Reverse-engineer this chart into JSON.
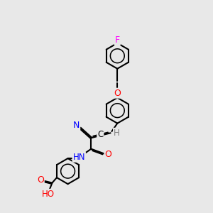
{
  "background_color": "#e8e8e8",
  "atom_colors": {
    "C": "#000000",
    "N": "#0000ff",
    "O": "#ff0000",
    "F": "#ff00ff",
    "H": "#808080"
  },
  "bond_color": "#000000",
  "bond_width": 1.5,
  "figsize": [
    3.0,
    3.0
  ],
  "dpi": 100
}
